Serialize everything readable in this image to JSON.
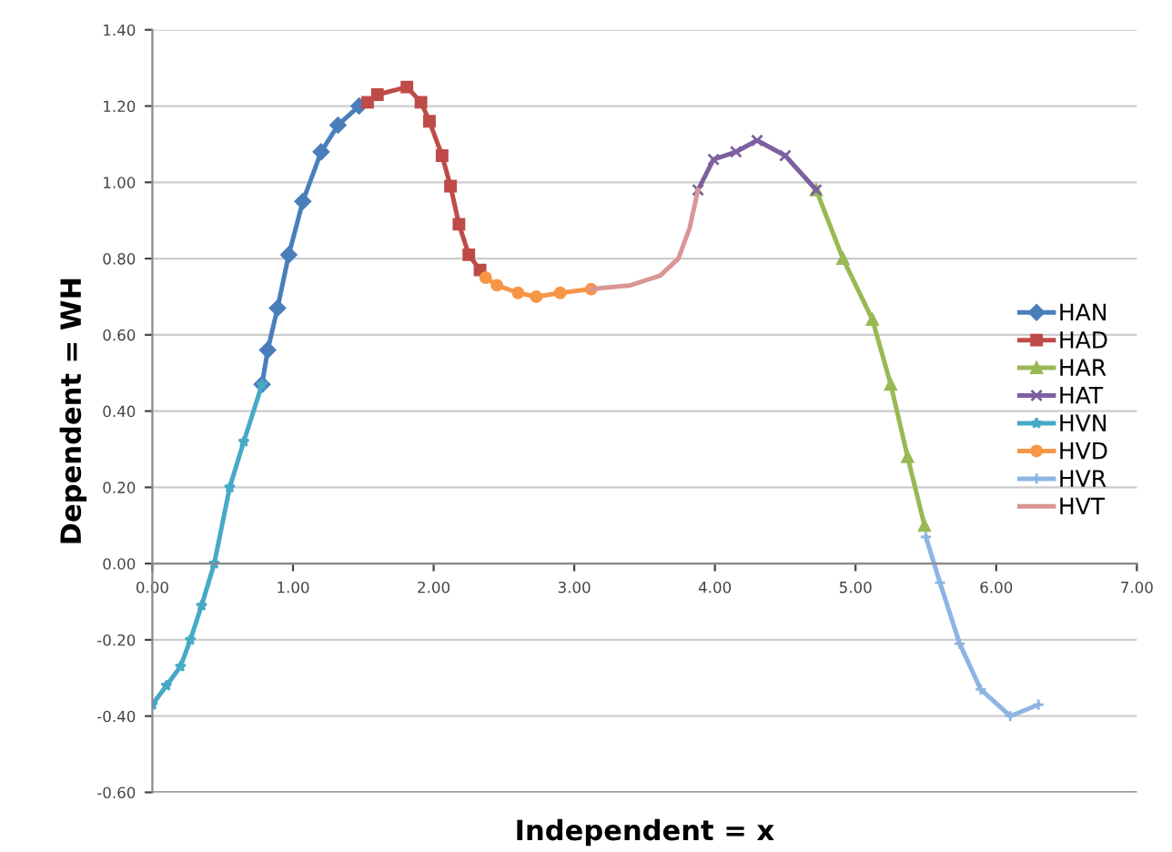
{
  "chart_data": {
    "type": "line",
    "xlabel": "Independent = x",
    "ylabel": "Dependent = WH",
    "xlim": [
      0,
      7
    ],
    "ylim": [
      -0.6,
      1.4
    ],
    "xticks": [
      {
        "value": 0,
        "label": "0.00"
      },
      {
        "value": 1,
        "label": "1.00"
      },
      {
        "value": 2,
        "label": "2.00"
      },
      {
        "value": 3,
        "label": "3.00"
      },
      {
        "value": 4,
        "label": "4.00"
      },
      {
        "value": 5,
        "label": "5.00"
      },
      {
        "value": 6,
        "label": "6.00"
      },
      {
        "value": 7,
        "label": "7.00"
      }
    ],
    "yticks": [
      {
        "value": -0.6,
        "label": "-0.60"
      },
      {
        "value": -0.4,
        "label": "-0.40"
      },
      {
        "value": -0.2,
        "label": "-0.20"
      },
      {
        "value": 0,
        "label": "0.00"
      },
      {
        "value": 0.2,
        "label": "0.20"
      },
      {
        "value": 0.4,
        "label": "0.40"
      },
      {
        "value": 0.6,
        "label": "0.60"
      },
      {
        "value": 0.8,
        "label": "0.80"
      },
      {
        "value": 1.0,
        "label": "1.00"
      },
      {
        "value": 1.2,
        "label": "1.20"
      },
      {
        "value": 1.4,
        "label": "1.40"
      }
    ],
    "grid": "y",
    "legend": "right",
    "series": [
      {
        "name": "HAN",
        "color": "#4a7ebb",
        "marker": "diamond",
        "x": [
          0.78,
          0.82,
          0.89,
          0.97,
          1.07,
          1.2,
          1.32,
          1.47
        ],
        "values": [
          0.47,
          0.56,
          0.67,
          0.81,
          0.95,
          1.08,
          1.15,
          1.2
        ]
      },
      {
        "name": "HAD",
        "color": "#be4b48",
        "marker": "square",
        "x": [
          1.53,
          1.6,
          1.81,
          1.91,
          1.97,
          2.06,
          2.12,
          2.18,
          2.25,
          2.33
        ],
        "values": [
          1.21,
          1.23,
          1.25,
          1.21,
          1.16,
          1.07,
          0.99,
          0.89,
          0.81,
          0.77
        ]
      },
      {
        "name": "HAR",
        "color": "#98b954",
        "marker": "triangle",
        "x": [
          4.72,
          4.91,
          5.12,
          5.25,
          5.37,
          5.49
        ],
        "values": [
          0.98,
          0.8,
          0.64,
          0.47,
          0.28,
          0.1
        ]
      },
      {
        "name": "HAT",
        "color": "#7d60a0",
        "marker": "cross",
        "x": [
          3.88,
          3.99,
          4.15,
          4.3,
          4.5,
          4.72
        ],
        "values": [
          0.98,
          1.06,
          1.08,
          1.11,
          1.07,
          0.98
        ]
      },
      {
        "name": "HVN",
        "color": "#46aac5",
        "marker": "star",
        "x": [
          0,
          0.1,
          0.2,
          0.27,
          0.35,
          0.44,
          0.55,
          0.65,
          0.78
        ],
        "values": [
          -0.37,
          -0.32,
          -0.27,
          -0.2,
          -0.11,
          0,
          0.2,
          0.32,
          0.47
        ]
      },
      {
        "name": "HVD",
        "color": "#f79646",
        "marker": "circle",
        "x": [
          2.37,
          2.45,
          2.6,
          2.73,
          2.9,
          3.12
        ],
        "values": [
          0.75,
          0.73,
          0.71,
          0.7,
          0.71,
          0.72
        ]
      },
      {
        "name": "HVR",
        "color": "#8eb4e3",
        "marker": "plus",
        "x": [
          5.5,
          5.6,
          5.74,
          5.89,
          6.1,
          6.3
        ],
        "values": [
          0.07,
          -0.05,
          -0.21,
          -0.33,
          -0.4,
          -0.37
        ]
      },
      {
        "name": "HVT",
        "color": "#d99694",
        "marker": "none",
        "x": [
          3.12,
          3.4,
          3.61,
          3.74,
          3.82,
          3.88
        ],
        "values": [
          0.72,
          0.73,
          0.755,
          0.8,
          0.88,
          0.98
        ]
      }
    ]
  }
}
